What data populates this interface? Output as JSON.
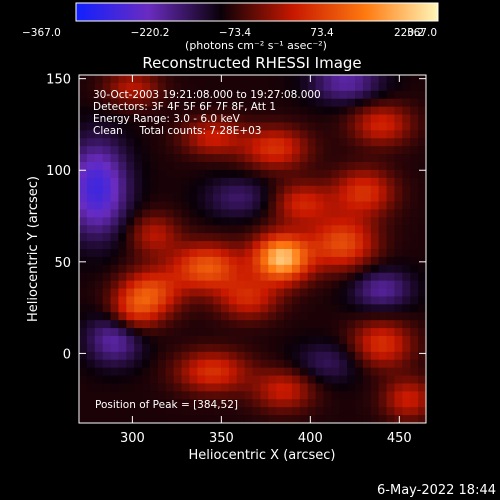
{
  "colorbar": {
    "ticks": [
      "−367.0",
      "−220.2",
      "−73.4",
      "73.4",
      "220.2",
      "367.0"
    ],
    "units": "(photons cm⁻² s⁻¹ asec⁻²)",
    "stops": [
      "#1020ff",
      "#6a2cc0",
      "#0a0008",
      "#c81800",
      "#ff7a10",
      "#fff6b8"
    ]
  },
  "chart_data": {
    "type": "heatmap",
    "title": "Reconstructed RHESSI Image",
    "xlabel": "Heliocentric X (arcsec)",
    "ylabel": "Heliocentric Y (arcsec)",
    "xlim": [
      270,
      465
    ],
    "ylim": [
      -38,
      152
    ],
    "xticks": [
      "300",
      "350",
      "400",
      "450"
    ],
    "yticks": [
      "0",
      "50",
      "100",
      "150"
    ],
    "colorbar_range": [
      -367.0,
      367.0
    ],
    "annotations": [
      "30-Oct-2003 19:21:08.000 to 19:27:08.000",
      "Detectors: 3F 4F 5F 6F 7F 8F, Att 1",
      "Energy Range: 3.0 - 6.0 keV",
      "Clean     Total counts: 7.28E+03"
    ],
    "peak_label": "Position of Peak = [384,52]",
    "peak": [
      384,
      52
    ],
    "peak_value": 367.0,
    "blobs": [
      {
        "x": 384,
        "y": 52,
        "amp": 367,
        "sx": 11,
        "sy": 9
      },
      {
        "x": 342,
        "y": 47,
        "amp": 230,
        "sx": 14,
        "sy": 9
      },
      {
        "x": 310,
        "y": 33,
        "amp": 200,
        "sx": 12,
        "sy": 9
      },
      {
        "x": 418,
        "y": 60,
        "amp": 210,
        "sx": 13,
        "sy": 10
      },
      {
        "x": 365,
        "y": 30,
        "amp": 150,
        "sx": 12,
        "sy": 8
      },
      {
        "x": 300,
        "y": 22,
        "amp": 140,
        "sx": 10,
        "sy": 8
      },
      {
        "x": 395,
        "y": 82,
        "amp": 150,
        "sx": 12,
        "sy": 8
      },
      {
        "x": 430,
        "y": 88,
        "amp": 170,
        "sx": 12,
        "sy": 9
      },
      {
        "x": 380,
        "y": 112,
        "amp": 170,
        "sx": 13,
        "sy": 8
      },
      {
        "x": 345,
        "y": 118,
        "amp": 140,
        "sx": 12,
        "sy": 7
      },
      {
        "x": 440,
        "y": 125,
        "amp": 150,
        "sx": 12,
        "sy": 8
      },
      {
        "x": 300,
        "y": 145,
        "amp": 120,
        "sx": 11,
        "sy": 7
      },
      {
        "x": 345,
        "y": -10,
        "amp": 170,
        "sx": 14,
        "sy": 8
      },
      {
        "x": 385,
        "y": -20,
        "amp": 140,
        "sx": 12,
        "sy": 8
      },
      {
        "x": 440,
        "y": 5,
        "amp": 170,
        "sx": 12,
        "sy": 9
      },
      {
        "x": 455,
        "y": -25,
        "amp": 140,
        "sx": 10,
        "sy": 8
      },
      {
        "x": 312,
        "y": 65,
        "amp": 120,
        "sx": 10,
        "sy": 8
      },
      {
        "x": 280,
        "y": 90,
        "amp": -230,
        "sx": 12,
        "sy": 18
      },
      {
        "x": 290,
        "y": 8,
        "amp": -150,
        "sx": 11,
        "sy": 10
      },
      {
        "x": 440,
        "y": 35,
        "amp": -130,
        "sx": 12,
        "sy": 8
      },
      {
        "x": 420,
        "y": 148,
        "amp": -140,
        "sx": 14,
        "sy": 8
      },
      {
        "x": 360,
        "y": 85,
        "amp": -90,
        "sx": 14,
        "sy": 8
      },
      {
        "x": 410,
        "y": -5,
        "amp": -80,
        "sx": 14,
        "sy": 8
      }
    ]
  },
  "footer": {
    "date": "6-May-2022 18:44"
  }
}
